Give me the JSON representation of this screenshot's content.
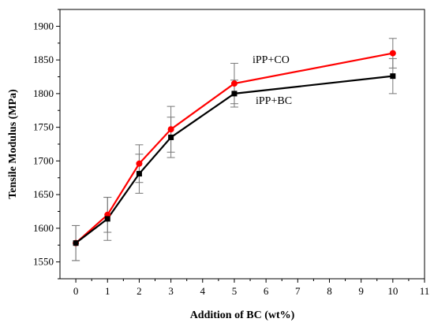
{
  "chart_data": {
    "type": "line",
    "xlabel": "Addition of BC (wt%)",
    "ylabel": "Tensile Modulus (MPa)",
    "xlim": [
      -0.5,
      11
    ],
    "ylim": [
      1525,
      1925
    ],
    "xticks": [
      0,
      1,
      2,
      3,
      4,
      5,
      6,
      7,
      8,
      9,
      10,
      11
    ],
    "yticks": [
      1550,
      1600,
      1650,
      1700,
      1750,
      1800,
      1850,
      1900
    ],
    "grid": false,
    "x": [
      0,
      1,
      2,
      3,
      5,
      10
    ],
    "series": [
      {
        "name": "iPP+CO",
        "color": "#ff0000",
        "marker": "circle",
        "values": [
          1578,
          1620,
          1696,
          1747,
          1815,
          1860
        ],
        "errors": [
          26,
          26,
          28,
          34,
          30,
          22
        ]
      },
      {
        "name": "iPP+BC",
        "color": "#000000",
        "marker": "square",
        "values": [
          1578,
          1614,
          1681,
          1735,
          1800,
          1826
        ],
        "errors": [
          26,
          32,
          29,
          30,
          20,
          26
        ]
      }
    ]
  }
}
